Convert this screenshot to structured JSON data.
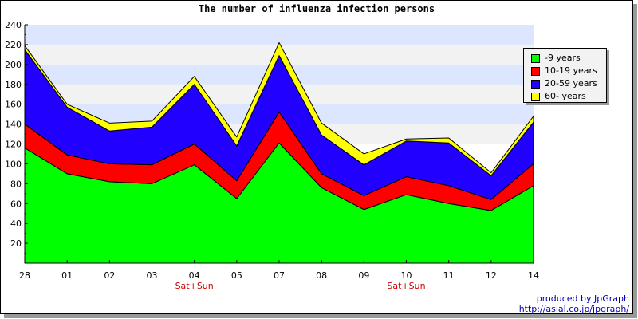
{
  "chart_data": {
    "type": "area",
    "stacked": true,
    "title": "The number of influenza infection persons",
    "categories": [
      "28",
      "01",
      "02",
      "03",
      "04",
      "05",
      "07",
      "08",
      "09",
      "10",
      "11",
      "12",
      "14"
    ],
    "category_notes": [
      "",
      "",
      "",
      "",
      "Sat+Sun",
      "",
      "",
      "",
      "",
      "Sat+Sun",
      "",
      "",
      ""
    ],
    "ylim": [
      0,
      240
    ],
    "yticks": [
      20,
      40,
      60,
      80,
      100,
      120,
      140,
      160,
      180,
      200,
      220,
      240
    ],
    "grid": "horizontal bands",
    "legend_position": "right",
    "series": [
      {
        "name": "-9 years",
        "color": "#00ff00",
        "values": [
          116,
          90,
          82,
          80,
          99,
          65,
          121,
          76,
          54,
          69,
          60,
          53,
          78
        ]
      },
      {
        "name": "10-19 years",
        "color": "#ff0000",
        "values": [
          24,
          19,
          18,
          19,
          21,
          18,
          31,
          14,
          14,
          18,
          18,
          11,
          22
        ]
      },
      {
        "name": "20-59 years",
        "color": "#2200ff",
        "values": [
          75,
          48,
          33,
          38,
          60,
          35,
          57,
          39,
          31,
          36,
          43,
          24,
          42
        ]
      },
      {
        "name": "60- years",
        "color": "#ffff00",
        "values": [
          4,
          3,
          8,
          6,
          8,
          9,
          13,
          12,
          11,
          2,
          5,
          3,
          6
        ]
      }
    ]
  },
  "credit": {
    "line1": "produced by JpGraph",
    "line2": "http://asial.co.jp/jpgraph/"
  }
}
